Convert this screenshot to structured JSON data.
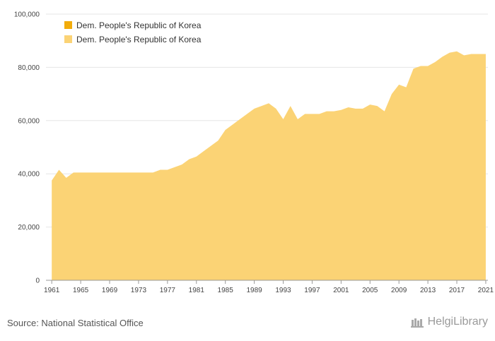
{
  "chart_data": {
    "type": "area",
    "title": "",
    "xlabel": "",
    "ylabel": "",
    "ylim": [
      0,
      100000
    ],
    "yticks": [
      0,
      20000,
      40000,
      60000,
      80000,
      100000
    ],
    "ytick_labels": [
      "0",
      "20,000",
      "40,000",
      "60,000",
      "80,000",
      "100,000"
    ],
    "xticks": [
      1961,
      1965,
      1969,
      1973,
      1977,
      1981,
      1985,
      1989,
      1993,
      1997,
      2001,
      2005,
      2009,
      2013,
      2017,
      2021
    ],
    "grid": true,
    "legend_position": "top-left",
    "legend": [
      {
        "name": "Dem. People's Republic of Korea",
        "color": "#f2ac0b"
      },
      {
        "name": "Dem. People's Republic of Korea",
        "color": "#fbd375"
      }
    ],
    "series": [
      {
        "name": "Dem. People's Republic of Korea",
        "color": "#fbd375",
        "x": [
          1961,
          1962,
          1963,
          1964,
          1965,
          1966,
          1967,
          1968,
          1969,
          1970,
          1971,
          1972,
          1973,
          1974,
          1975,
          1976,
          1977,
          1978,
          1979,
          1980,
          1981,
          1982,
          1983,
          1984,
          1985,
          1986,
          1987,
          1988,
          1989,
          1990,
          1991,
          1992,
          1993,
          1994,
          1995,
          1996,
          1997,
          1998,
          1999,
          2000,
          2001,
          2002,
          2003,
          2004,
          2005,
          2006,
          2007,
          2008,
          2009,
          2010,
          2011,
          2012,
          2013,
          2014,
          2015,
          2016,
          2017,
          2018,
          2019,
          2020,
          2021
        ],
        "values": [
          37500,
          41500,
          38500,
          40500,
          40500,
          40500,
          40500,
          40500,
          40500,
          40500,
          40500,
          40500,
          40500,
          40500,
          40500,
          41500,
          41500,
          42500,
          43500,
          45500,
          46500,
          48500,
          50500,
          52500,
          56500,
          58500,
          60500,
          62500,
          64500,
          65500,
          66500,
          64500,
          60500,
          65500,
          60500,
          62500,
          62500,
          62500,
          63500,
          63500,
          64000,
          65000,
          64500,
          64500,
          66000,
          65500,
          63500,
          70000,
          73500,
          72500,
          79500,
          80500,
          80500,
          82000,
          84000,
          85500,
          86000,
          84500,
          85000,
          85000,
          85000
        ]
      }
    ]
  },
  "source_text": "Source: National Statistical Office",
  "logo_text": "HelgiLibrary"
}
